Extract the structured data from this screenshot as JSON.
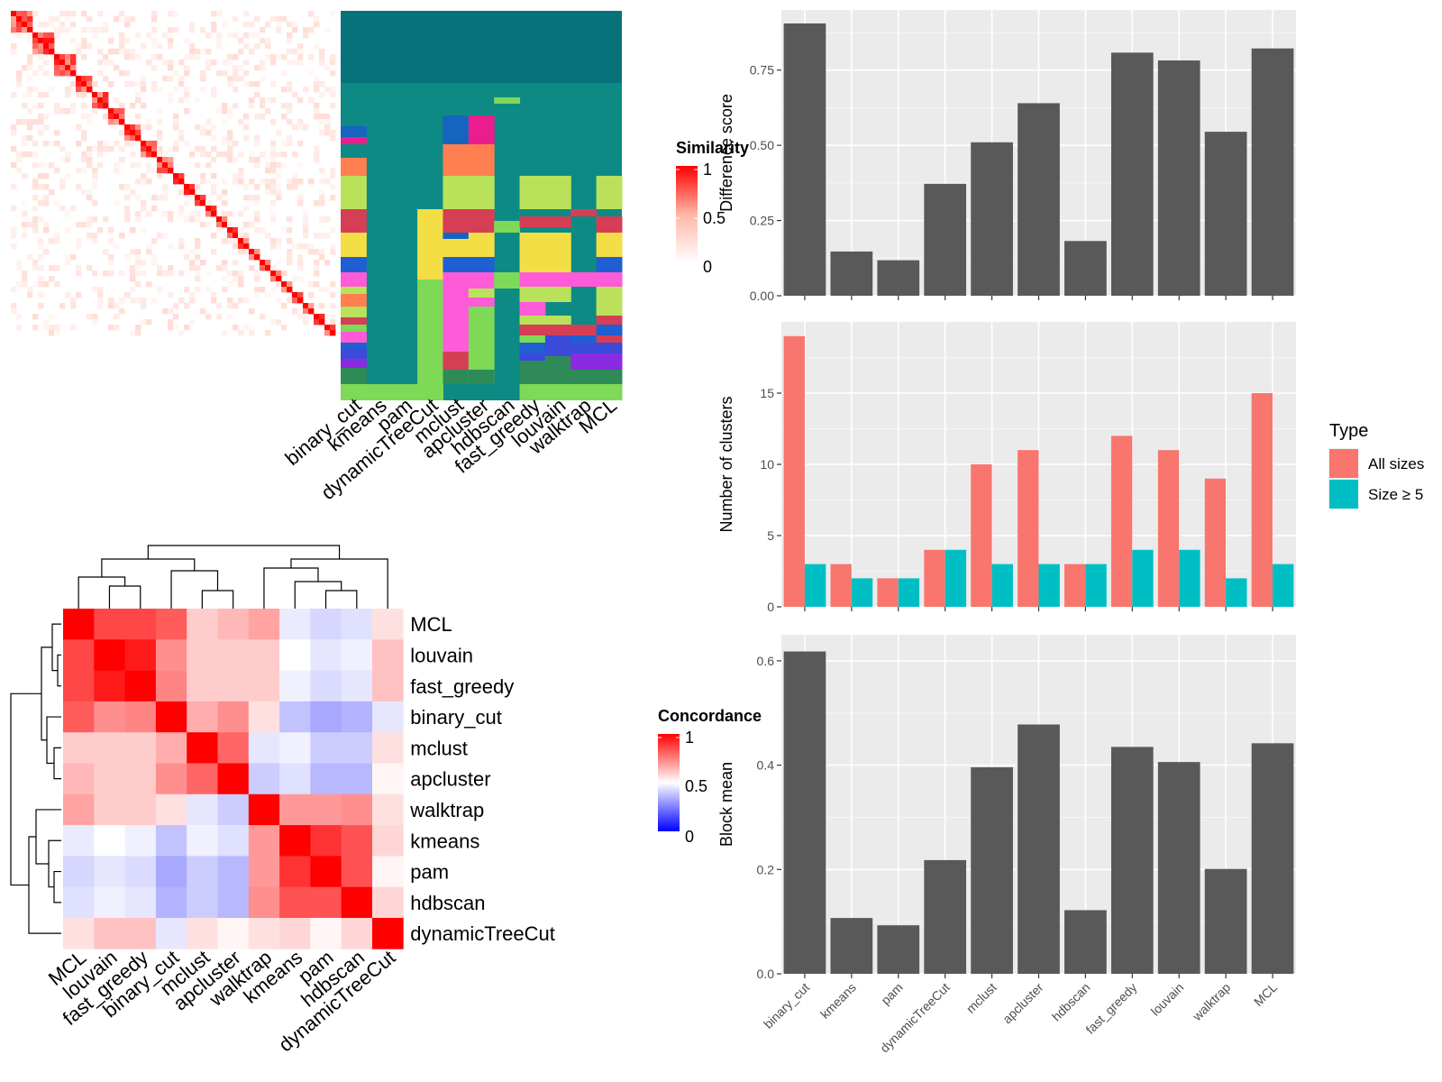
{
  "methods": [
    "binary_cut",
    "kmeans",
    "pam",
    "dynamicTreeCut",
    "mclust",
    "apcluster",
    "hdbscan",
    "fast_greedy",
    "louvain",
    "walktrap",
    "MCL"
  ],
  "similarity_heatmap": {
    "legend_title": "Similarity",
    "legend_ticks": [
      "0",
      "0.5",
      "1"
    ],
    "colors": {
      "low": "#ffffff",
      "high": "#ff0000"
    }
  },
  "partition_panel": {
    "columns": [
      "binary_cut",
      "kmeans",
      "pam",
      "dynamicTreeCut",
      "mclust",
      "apcluster",
      "hdbscan",
      "fast_greedy",
      "louvain",
      "walktrap",
      "MCL"
    ]
  },
  "concordance_heatmap": {
    "legend_title": "Concordance",
    "legend_ticks": [
      "0",
      "0.5",
      "1"
    ],
    "colors": {
      "low": "#0000ff",
      "mid": "#ffffff",
      "high": "#ff0000"
    },
    "order": [
      "MCL",
      "louvain",
      "fast_greedy",
      "binary_cut",
      "mclust",
      "apcluster",
      "walktrap",
      "kmeans",
      "pam",
      "hdbscan",
      "dynamicTreeCut"
    ],
    "matrix": [
      [
        1.0,
        0.86,
        0.86,
        0.82,
        0.6,
        0.64,
        0.68,
        0.46,
        0.42,
        0.44,
        0.56
      ],
      [
        0.86,
        1.0,
        0.95,
        0.72,
        0.6,
        0.6,
        0.6,
        0.5,
        0.45,
        0.47,
        0.62
      ],
      [
        0.86,
        0.95,
        1.0,
        0.74,
        0.6,
        0.6,
        0.6,
        0.47,
        0.43,
        0.45,
        0.62
      ],
      [
        0.82,
        0.72,
        0.74,
        1.0,
        0.66,
        0.72,
        0.56,
        0.38,
        0.33,
        0.35,
        0.45
      ],
      [
        0.6,
        0.6,
        0.6,
        0.66,
        1.0,
        0.8,
        0.45,
        0.47,
        0.4,
        0.4,
        0.56
      ],
      [
        0.64,
        0.6,
        0.6,
        0.72,
        0.8,
        1.0,
        0.4,
        0.44,
        0.36,
        0.36,
        0.52
      ],
      [
        0.68,
        0.6,
        0.6,
        0.56,
        0.45,
        0.4,
        1.0,
        0.7,
        0.7,
        0.72,
        0.56
      ],
      [
        0.46,
        0.5,
        0.47,
        0.38,
        0.47,
        0.44,
        0.7,
        1.0,
        0.9,
        0.84,
        0.58
      ],
      [
        0.42,
        0.45,
        0.43,
        0.33,
        0.4,
        0.36,
        0.7,
        0.9,
        1.0,
        0.84,
        0.52
      ],
      [
        0.44,
        0.47,
        0.45,
        0.35,
        0.4,
        0.36,
        0.72,
        0.84,
        0.84,
        1.0,
        0.58
      ],
      [
        0.56,
        0.62,
        0.62,
        0.45,
        0.56,
        0.52,
        0.56,
        0.58,
        0.52,
        0.58,
        1.0
      ]
    ]
  },
  "chart_data": [
    {
      "type": "bar",
      "categories": [
        "binary_cut",
        "kmeans",
        "pam",
        "dynamicTreeCut",
        "mclust",
        "apcluster",
        "hdbscan",
        "fast_greedy",
        "louvain",
        "walktrap",
        "MCL"
      ],
      "values": [
        0.905,
        0.147,
        0.118,
        0.372,
        0.51,
        0.64,
        0.182,
        0.808,
        0.782,
        0.545,
        0.822
      ],
      "xlabel": "",
      "ylabel": "Difference score",
      "ylim": [
        0,
        0.95
      ],
      "yticks": [
        0,
        0.25,
        0.5,
        0.75
      ],
      "ytick_labels": [
        "0.00",
        "0.25",
        "0.50",
        "0.75"
      ],
      "bar_color": "#595959",
      "panel_bg": "#ebebeb",
      "grid": true
    },
    {
      "type": "bar",
      "categories": [
        "binary_cut",
        "kmeans",
        "pam",
        "dynamicTreeCut",
        "mclust",
        "apcluster",
        "hdbscan",
        "fast_greedy",
        "louvain",
        "walktrap",
        "MCL"
      ],
      "series": [
        {
          "name": "All sizes",
          "color": "#f8766d",
          "values": [
            19,
            3,
            2,
            4,
            10,
            11,
            3,
            12,
            11,
            9,
            15
          ]
        },
        {
          "name": "Size ≥ 5",
          "color": "#00bfc4",
          "values": [
            3,
            2,
            2,
            4,
            3,
            3,
            3,
            4,
            4,
            2,
            3
          ]
        }
      ],
      "xlabel": "",
      "ylabel": "Number of clusters",
      "ylim": [
        0,
        20
      ],
      "yticks": [
        0,
        5,
        10,
        15
      ],
      "ytick_labels": [
        "0",
        "5",
        "10",
        "15"
      ],
      "legend_title": "Type",
      "legend_position": "right",
      "panel_bg": "#ebebeb",
      "grid": true
    },
    {
      "type": "bar",
      "categories": [
        "binary_cut",
        "kmeans",
        "pam",
        "dynamicTreeCut",
        "mclust",
        "apcluster",
        "hdbscan",
        "fast_greedy",
        "louvain",
        "walktrap",
        "MCL"
      ],
      "values": [
        0.618,
        0.107,
        0.093,
        0.218,
        0.396,
        0.478,
        0.122,
        0.435,
        0.406,
        0.201,
        0.442
      ],
      "xlabel": "",
      "ylabel": "Block mean",
      "ylim": [
        0,
        0.65
      ],
      "yticks": [
        0,
        0.2,
        0.4,
        0.6
      ],
      "ytick_labels": [
        "0.0",
        "0.2",
        "0.4",
        "0.6"
      ],
      "bar_color": "#595959",
      "panel_bg": "#ebebeb",
      "grid": true
    }
  ]
}
